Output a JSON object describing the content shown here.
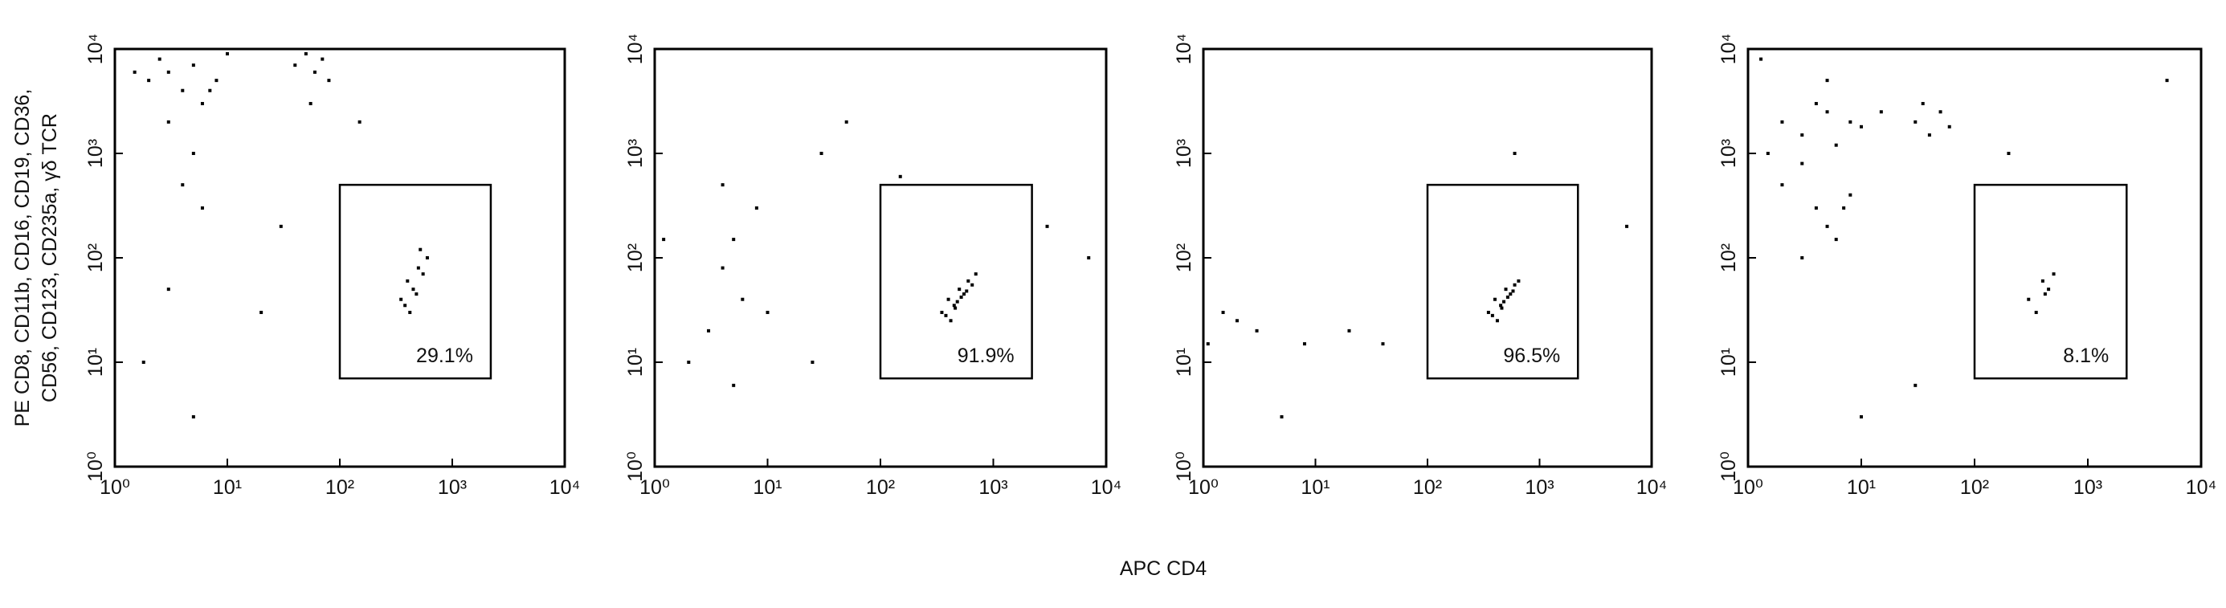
{
  "x_label": "APC CD4",
  "y_label_lines": [
    "PE CD8, CD11b, CD16, CD19, CD36,",
    "CD56, CD123, CD235a, γδ TCR"
  ],
  "chart_data": [
    {
      "type": "scatter",
      "color": "#000000",
      "log_x": true,
      "log_y": true,
      "xlim": [
        1,
        10000
      ],
      "ylim": [
        1,
        10000
      ],
      "xticks": [
        {
          "value": 1,
          "label": "10⁰"
        },
        {
          "value": 10,
          "label": "10¹"
        },
        {
          "value": 100,
          "label": "10²"
        },
        {
          "value": 1000,
          "label": "10³"
        },
        {
          "value": 10000,
          "label": "10⁴"
        }
      ],
      "yticks": [
        {
          "value": 1,
          "label": "10⁰"
        },
        {
          "value": 10,
          "label": "10¹"
        },
        {
          "value": 100,
          "label": "10²"
        },
        {
          "value": 1000,
          "label": "10³"
        },
        {
          "value": 10000,
          "label": "10⁴"
        }
      ],
      "gate": {
        "x": [
          100,
          2200
        ],
        "y": [
          7,
          500
        ]
      },
      "gate_value": 29.1,
      "gate_label": "29.1%",
      "x": [
        2,
        3,
        4,
        5,
        6,
        8,
        3,
        2.5,
        5,
        7,
        1.5,
        10,
        4,
        6,
        40,
        50,
        60,
        70,
        80,
        55,
        350,
        400,
        450,
        500,
        550,
        600,
        420,
        480,
        380,
        520,
        150,
        20,
        1.8,
        30,
        3,
        5
      ],
      "y": [
        5000,
        6000,
        4000,
        7000,
        3000,
        5000,
        2000,
        8000,
        1000,
        4000,
        6000,
        9000,
        500,
        300,
        7000,
        9000,
        6000,
        8000,
        5000,
        3000,
        40,
        60,
        50,
        80,
        70,
        100,
        30,
        45,
        35,
        120,
        2000,
        30,
        10,
        200,
        50,
        3
      ]
    },
    {
      "type": "scatter",
      "color": "#000000",
      "log_x": true,
      "log_y": true,
      "xlim": [
        1,
        10000
      ],
      "ylim": [
        1,
        10000
      ],
      "xticks": [
        {
          "value": 1,
          "label": "10⁰"
        },
        {
          "value": 10,
          "label": "10¹"
        },
        {
          "value": 100,
          "label": "10²"
        },
        {
          "value": 1000,
          "label": "10³"
        },
        {
          "value": 10000,
          "label": "10⁴"
        }
      ],
      "yticks": [
        {
          "value": 1,
          "label": "10⁰"
        },
        {
          "value": 10,
          "label": "10¹"
        },
        {
          "value": 100,
          "label": "10²"
        },
        {
          "value": 1000,
          "label": "10³"
        },
        {
          "value": 10000,
          "label": "10⁴"
        }
      ],
      "gate": {
        "x": [
          100,
          2200
        ],
        "y": [
          7,
          500
        ]
      },
      "gate_value": 91.9,
      "gate_label": "91.9%",
      "x": [
        350,
        400,
        450,
        500,
        550,
        600,
        650,
        700,
        420,
        480,
        520,
        580,
        380,
        460,
        3,
        4,
        5,
        6,
        8,
        2,
        10,
        4,
        30,
        50,
        150,
        3000,
        7000,
        25,
        5,
        1.2
      ],
      "y": [
        30,
        40,
        35,
        50,
        45,
        60,
        55,
        70,
        25,
        38,
        42,
        48,
        28,
        33,
        20,
        80,
        150,
        40,
        300,
        10,
        30,
        500,
        1000,
        2000,
        600,
        200,
        100,
        10,
        6,
        150
      ]
    },
    {
      "type": "scatter",
      "color": "#000000",
      "log_x": true,
      "log_y": true,
      "xlim": [
        1,
        10000
      ],
      "ylim": [
        1,
        10000
      ],
      "xticks": [
        {
          "value": 1,
          "label": "10⁰"
        },
        {
          "value": 10,
          "label": "10¹"
        },
        {
          "value": 100,
          "label": "10²"
        },
        {
          "value": 1000,
          "label": "10³"
        },
        {
          "value": 10000,
          "label": "10⁴"
        }
      ],
      "yticks": [
        {
          "value": 1,
          "label": "10⁰"
        },
        {
          "value": 10,
          "label": "10¹"
        },
        {
          "value": 100,
          "label": "10²"
        },
        {
          "value": 1000,
          "label": "10³"
        },
        {
          "value": 10000,
          "label": "10⁴"
        }
      ],
      "gate": {
        "x": [
          100,
          2200
        ],
        "y": [
          7,
          500
        ]
      },
      "gate_value": 96.5,
      "gate_label": "96.5%",
      "x": [
        350,
        400,
        450,
        500,
        550,
        600,
        650,
        420,
        480,
        520,
        380,
        460,
        580,
        1.1,
        1.5,
        3,
        5,
        8,
        20,
        40,
        600,
        6000,
        2
      ],
      "y": [
        30,
        40,
        35,
        50,
        45,
        55,
        60,
        25,
        38,
        42,
        28,
        33,
        48,
        15,
        30,
        20,
        3,
        15,
        20,
        15,
        1000,
        200,
        25
      ]
    },
    {
      "type": "scatter",
      "color": "#000000",
      "log_x": true,
      "log_y": true,
      "xlim": [
        1,
        10000
      ],
      "ylim": [
        1,
        10000
      ],
      "xticks": [
        {
          "value": 1,
          "label": "10⁰"
        },
        {
          "value": 10,
          "label": "10¹"
        },
        {
          "value": 100,
          "label": "10²"
        },
        {
          "value": 1000,
          "label": "10³"
        },
        {
          "value": 10000,
          "label": "10⁴"
        }
      ],
      "yticks": [
        {
          "value": 1,
          "label": "10⁰"
        },
        {
          "value": 10,
          "label": "10¹"
        },
        {
          "value": 100,
          "label": "10²"
        },
        {
          "value": 1000,
          "label": "10³"
        },
        {
          "value": 10000,
          "label": "10⁴"
        }
      ],
      "gate": {
        "x": [
          100,
          2200
        ],
        "y": [
          7,
          500
        ]
      },
      "gate_value": 8.1,
      "gate_label": "8.1%",
      "x": [
        2,
        3,
        4,
        5,
        6,
        8,
        10,
        15,
        1.5,
        3,
        5,
        7,
        30,
        40,
        50,
        60,
        35,
        4,
        5,
        6,
        8,
        3,
        300,
        400,
        450,
        500,
        350,
        420,
        200,
        1.3,
        30,
        5000,
        10,
        2
      ],
      "y": [
        2000,
        1500,
        3000,
        2500,
        1200,
        2000,
        1800,
        2500,
        1000,
        800,
        5000,
        300,
        2000,
        1500,
        2500,
        1800,
        3000,
        300,
        200,
        150,
        400,
        100,
        40,
        60,
        50,
        70,
        30,
        45,
        1000,
        8000,
        6,
        5000,
        3,
        500
      ]
    }
  ]
}
